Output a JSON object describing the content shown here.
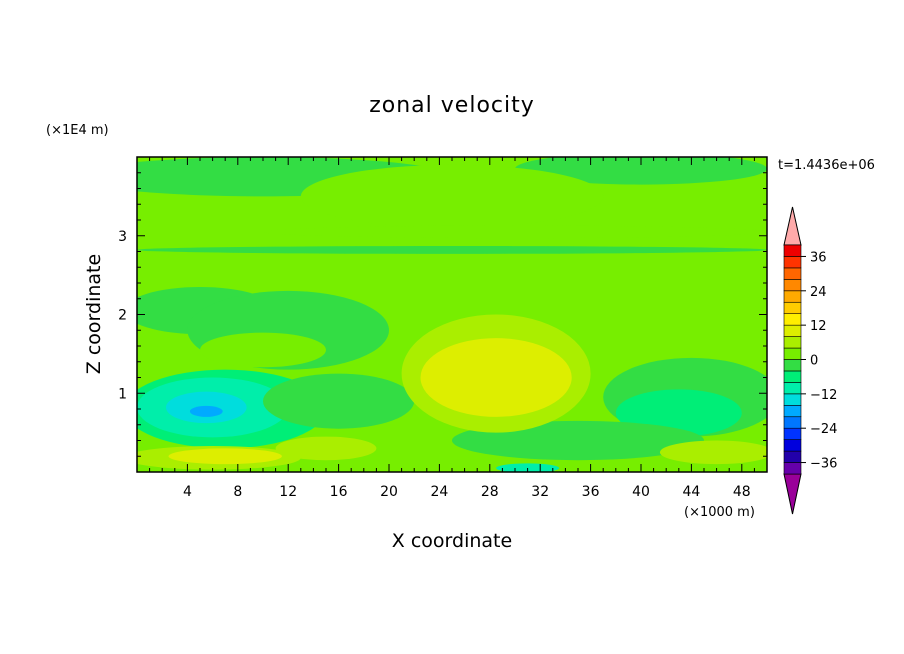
{
  "chart_data": {
    "type": "heatmap",
    "title": "zonal velocity",
    "xlabel": "X coordinate",
    "ylabel": "Z coordinate",
    "x_unit": "(×1000 m)",
    "y_unit": "(×1E4 m)",
    "time_label": "t=1.4436e+06",
    "xlim": [
      0,
      50
    ],
    "ylim": [
      0,
      4
    ],
    "x_ticks": [
      4,
      8,
      12,
      16,
      20,
      24,
      28,
      32,
      36,
      40,
      44,
      48
    ],
    "y_ticks": [
      1,
      2,
      3
    ],
    "background_value": 3,
    "regions": [
      {
        "cx": 10,
        "cy": 3.75,
        "rx": 15,
        "ry": 0.25,
        "value": -3
      },
      {
        "cx": 40,
        "cy": 3.85,
        "rx": 10,
        "ry": 0.2,
        "value": -3
      },
      {
        "cx": 25,
        "cy": 3.5,
        "rx": 12,
        "ry": 0.4,
        "value": 2
      },
      {
        "cx": 30,
        "cy": 3.05,
        "rx": 20,
        "ry": 0.08,
        "value": 2
      },
      {
        "cx": 25,
        "cy": 2.82,
        "rx": 25,
        "ry": 0.05,
        "value": -3
      },
      {
        "cx": 5,
        "cy": 2.05,
        "rx": 6,
        "ry": 0.3,
        "value": -3
      },
      {
        "cx": 12,
        "cy": 1.8,
        "rx": 8,
        "ry": 0.5,
        "value": -3
      },
      {
        "cx": 10,
        "cy": 1.55,
        "rx": 5,
        "ry": 0.22,
        "value": 3
      },
      {
        "cx": 7,
        "cy": 0.8,
        "rx": 8,
        "ry": 0.5,
        "value": -7
      },
      {
        "cx": 6,
        "cy": 0.82,
        "rx": 6,
        "ry": 0.38,
        "value": -11
      },
      {
        "cx": 5.5,
        "cy": 0.82,
        "rx": 3.2,
        "ry": 0.2,
        "value": -15
      },
      {
        "cx": 5.5,
        "cy": 0.77,
        "rx": 1.3,
        "ry": 0.07,
        "value": -19
      },
      {
        "cx": 16,
        "cy": 0.9,
        "rx": 6,
        "ry": 0.35,
        "value": -3
      },
      {
        "cx": 44,
        "cy": 0.95,
        "rx": 7,
        "ry": 0.5,
        "value": -3
      },
      {
        "cx": 43,
        "cy": 0.75,
        "rx": 5,
        "ry": 0.3,
        "value": -7
      },
      {
        "cx": 35,
        "cy": 0.4,
        "rx": 10,
        "ry": 0.25,
        "value": -3
      },
      {
        "cx": 28.5,
        "cy": 1.25,
        "rx": 7.5,
        "ry": 0.75,
        "value": 7
      },
      {
        "cx": 28.5,
        "cy": 1.2,
        "rx": 6,
        "ry": 0.5,
        "value": 11
      },
      {
        "cx": 6,
        "cy": 0.18,
        "rx": 7,
        "ry": 0.15,
        "value": 7
      },
      {
        "cx": 7,
        "cy": 0.2,
        "rx": 4.5,
        "ry": 0.1,
        "value": 11
      },
      {
        "cx": 15,
        "cy": 0.3,
        "rx": 4,
        "ry": 0.15,
        "value": 7
      },
      {
        "cx": 46,
        "cy": 0.25,
        "rx": 4.5,
        "ry": 0.15,
        "value": 7
      },
      {
        "cx": 31,
        "cy": 0.05,
        "rx": 2.5,
        "ry": 0.06,
        "value": -11
      }
    ],
    "colorbar": {
      "levels": [
        -40,
        -36,
        -32,
        -28,
        -24,
        -20,
        -16,
        -12,
        -8,
        -4,
        0,
        4,
        8,
        12,
        16,
        20,
        24,
        28,
        32,
        36,
        40
      ],
      "colors": [
        "#6600aa",
        "#2200aa",
        "#0000dd",
        "#0033ff",
        "#0077ff",
        "#00aaff",
        "#00dddd",
        "#00eeaa",
        "#00ee77",
        "#33dd44",
        "#77ee00",
        "#aaee00",
        "#ddee00",
        "#ffee00",
        "#ffcc00",
        "#ffaa00",
        "#ff8800",
        "#ff6600",
        "#ff3300",
        "#ee0000"
      ],
      "under_color": "#990099",
      "over_color": "#ffaaaa",
      "labeled_ticks": [
        36,
        24,
        12,
        0,
        -12,
        -24,
        -36
      ]
    }
  }
}
